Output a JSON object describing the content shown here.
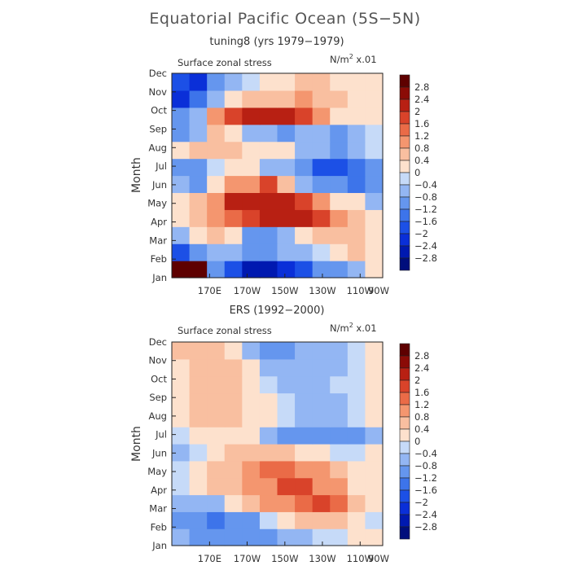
{
  "figure": {
    "title": "Equatorial Pacific Ocean (5S−5N)",
    "panels": [
      {
        "subtitle": "tuning8 (yrs 1979−1979)",
        "field_label": "Surface zonal stress",
        "units_base": "N/m",
        "units_exp": "2",
        "units_scale": " x.01",
        "ylabel": "Month"
      },
      {
        "subtitle": "ERS (1992−2000)",
        "field_label": "Surface zonal stress",
        "units_base": "N/m",
        "units_exp": "2",
        "units_scale": " x.01",
        "ylabel": "Month"
      }
    ]
  },
  "chart_data": [
    {
      "type": "heatmap",
      "title": "tuning8 (yrs 1979−1979)",
      "variable": "Surface zonal stress",
      "units": "N/m² x.01",
      "ylabel": "Month",
      "x_ticks": [
        "170E",
        "170W",
        "150W",
        "130W",
        "110W",
        "90W"
      ],
      "y_ticks": [
        "Jan",
        "Feb",
        "Mar",
        "Apr",
        "May",
        "Jun",
        "Jul",
        "Aug",
        "Sep",
        "Oct",
        "Nov",
        "Dec"
      ],
      "colorbar_levels": [
        2.8,
        2.4,
        2,
        1.6,
        1.2,
        0.8,
        0.4,
        0,
        -0.4,
        -0.8,
        -1.2,
        -1.6,
        -2,
        -2.4,
        -2.8
      ],
      "colorbar_labels": [
        "2.8",
        "2.4",
        "2",
        "1.6",
        "1.2",
        "0.8",
        "0.4",
        "0",
        "−0.4",
        "−0.8",
        "−1.2",
        "−1.6",
        "−2",
        "−2.4",
        "−2.8"
      ],
      "rows": [
        [
          3.0,
          3.0,
          -1.0,
          -1.6,
          -2.6,
          -2.8,
          -2.4,
          -1.8,
          -1.2,
          -0.8,
          -0.4,
          0.0
        ],
        [
          -1.8,
          -1.2,
          -0.4,
          -0.6,
          -1.2,
          -1.0,
          -0.6,
          -0.4,
          -0.2,
          0.2,
          0.4,
          0.2
        ],
        [
          -0.4,
          0.0,
          0.4,
          0.0,
          -0.8,
          -1.2,
          -0.6,
          0.0,
          0.4,
          0.6,
          0.4,
          0.2
        ],
        [
          0.2,
          0.4,
          0.8,
          1.4,
          1.6,
          2.0,
          2.4,
          2.4,
          1.6,
          0.8,
          0.4,
          0.0
        ],
        [
          0.0,
          0.4,
          1.2,
          2.0,
          2.4,
          2.4,
          2.0,
          1.6,
          1.0,
          0.2,
          0.0,
          -0.4
        ],
        [
          -0.4,
          -0.8,
          0.2,
          0.8,
          1.2,
          1.6,
          0.4,
          -0.4,
          -0.8,
          -1.2,
          -1.4,
          -1.2
        ],
        [
          -0.8,
          -0.8,
          -0.2,
          0.0,
          0.0,
          -0.4,
          -0.6,
          -1.2,
          -1.6,
          -1.8,
          -1.4,
          -0.8
        ],
        [
          0.0,
          0.4,
          0.4,
          0.4,
          0.2,
          0.2,
          0.0,
          -0.4,
          -0.6,
          -0.8,
          -0.6,
          -0.2
        ],
        [
          -1.0,
          -0.4,
          0.4,
          0.0,
          -0.4,
          -0.6,
          -0.8,
          -0.4,
          -0.6,
          -1.0,
          -0.6,
          -0.2
        ],
        [
          -1.2,
          -0.4,
          1.0,
          1.6,
          2.0,
          2.0,
          2.0,
          1.6,
          0.8,
          0.2,
          0.2,
          0.0
        ],
        [
          -2.0,
          -1.4,
          -0.4,
          0.2,
          0.4,
          0.4,
          0.6,
          0.8,
          0.6,
          0.4,
          0.2,
          0.0
        ],
        [
          -1.8,
          -2.0,
          -1.2,
          -0.6,
          -0.2,
          0.0,
          0.2,
          0.4,
          0.4,
          0.2,
          0.0,
          0.0
        ]
      ]
    },
    {
      "type": "heatmap",
      "title": "ERS (1992−2000)",
      "variable": "Surface zonal stress",
      "units": "N/m² x.01",
      "ylabel": "Month",
      "x_ticks": [
        "170E",
        "170W",
        "150W",
        "130W",
        "110W",
        "90W"
      ],
      "y_ticks": [
        "Jan",
        "Feb",
        "Mar",
        "Apr",
        "May",
        "Jun",
        "Jul",
        "Aug",
        "Sep",
        "Oct",
        "Nov",
        "Dec"
      ],
      "colorbar_levels": [
        2.8,
        2.4,
        2,
        1.6,
        1.2,
        0.8,
        0.4,
        0,
        -0.4,
        -0.8,
        -1.2,
        -1.6,
        -2,
        -2.4,
        -2.8
      ],
      "colorbar_labels": [
        "2.8",
        "2.4",
        "2",
        "1.6",
        "1.2",
        "0.8",
        "0.4",
        "0",
        "−0.4",
        "−0.8",
        "−1.2",
        "−1.6",
        "−2",
        "−2.4",
        "−2.8"
      ],
      "rows": [
        [
          -0.4,
          -0.8,
          -1.0,
          -1.2,
          -1.0,
          -0.8,
          -0.6,
          -0.4,
          -0.2,
          -0.2,
          0.0,
          0.0
        ],
        [
          -0.8,
          -1.2,
          -1.4,
          -1.2,
          -0.8,
          -0.2,
          0.2,
          0.4,
          0.6,
          0.4,
          0.0,
          -0.2
        ],
        [
          -0.4,
          -0.6,
          -0.4,
          0.0,
          0.4,
          0.8,
          1.2,
          1.4,
          1.6,
          1.4,
          0.4,
          0.0
        ],
        [
          -0.2,
          0.0,
          0.4,
          0.6,
          0.8,
          1.2,
          1.6,
          1.6,
          1.2,
          0.8,
          0.2,
          0.0
        ],
        [
          -0.2,
          0.0,
          0.4,
          0.6,
          1.0,
          1.4,
          1.4,
          1.2,
          0.8,
          0.4,
          0.0,
          0.0
        ],
        [
          -0.4,
          -0.2,
          0.0,
          0.4,
          0.6,
          0.6,
          0.4,
          0.2,
          0.0,
          -0.2,
          -0.2,
          0.0
        ],
        [
          -0.2,
          0.0,
          0.2,
          0.2,
          0.0,
          -0.4,
          -0.8,
          -1.0,
          -1.2,
          -1.2,
          -1.0,
          -0.6
        ],
        [
          0.2,
          0.4,
          0.4,
          0.4,
          0.2,
          0.0,
          -0.2,
          -0.4,
          -0.4,
          -0.4,
          -0.2,
          0.0
        ],
        [
          0.2,
          0.4,
          0.4,
          0.4,
          0.2,
          0.0,
          -0.2,
          -0.4,
          -0.4,
          -0.4,
          -0.2,
          0.0
        ],
        [
          0.2,
          0.4,
          0.6,
          0.4,
          0.2,
          -0.2,
          -0.4,
          -0.4,
          -0.4,
          -0.2,
          -0.2,
          0.0
        ],
        [
          0.2,
          0.6,
          0.6,
          0.4,
          0.0,
          -0.4,
          -0.6,
          -0.6,
          -0.6,
          -0.4,
          -0.2,
          0.0
        ],
        [
          0.4,
          0.6,
          0.4,
          0.0,
          -0.4,
          -0.8,
          -1.0,
          -0.6,
          -0.4,
          -0.4,
          -0.2,
          0.0
        ]
      ]
    }
  ],
  "palette": [
    "#000e7c",
    "#0019b0",
    "#0a2fd8",
    "#1c50e6",
    "#3d74ea",
    "#6596ee",
    "#93b6f3",
    "#c6daf8",
    "#fde1cd",
    "#f9bfa0",
    "#f4966f",
    "#ea6b47",
    "#d9432a",
    "#b82013",
    "#8b0b06",
    "#5e0000"
  ]
}
